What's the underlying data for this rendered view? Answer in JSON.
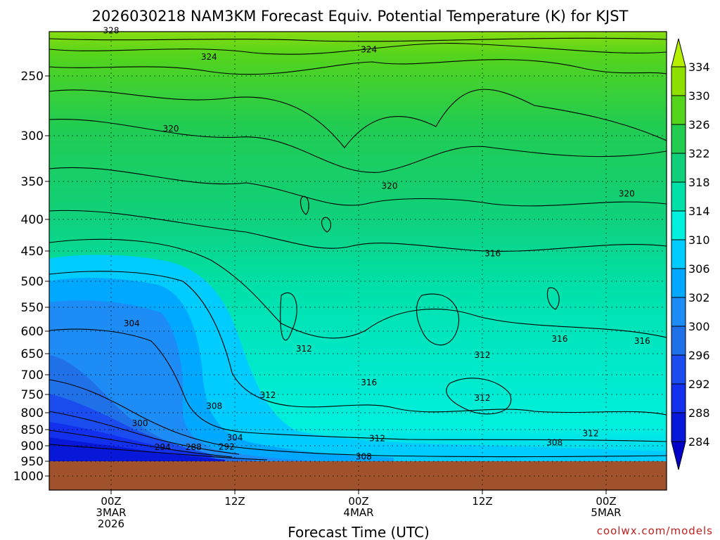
{
  "chart_data": {
    "type": "heatmap",
    "title": "2026030218 NAM3KM Forecast Equiv. Potential Temperature (K) for KJST",
    "xlabel": "Forecast Time (UTC)",
    "ylabel": "",
    "credit": "coolwx.com/models",
    "x_ticks": [
      {
        "hour": 6,
        "lines": [
          "00Z",
          "3MAR",
          "2026"
        ]
      },
      {
        "hour": 18,
        "lines": [
          "12Z"
        ]
      },
      {
        "hour": 30,
        "lines": [
          "00Z",
          "4MAR"
        ]
      },
      {
        "hour": 42,
        "lines": [
          "12Z"
        ]
      },
      {
        "hour": 54,
        "lines": [
          "00Z",
          "5MAR"
        ]
      }
    ],
    "xlim_hours": [
      0,
      60
    ],
    "y_ticks": [
      250,
      300,
      350,
      400,
      450,
      500,
      550,
      600,
      650,
      700,
      750,
      800,
      850,
      900,
      950,
      1000
    ],
    "ylim_hpa": [
      200,
      1050
    ],
    "ground_level_hpa": 950,
    "colorbar": {
      "ticks": [
        334,
        330,
        326,
        322,
        318,
        314,
        310,
        306,
        302,
        300,
        296,
        292,
        288,
        284
      ],
      "colors": [
        "#b5f000",
        "#8ee000",
        "#55d41c",
        "#22cc50",
        "#10d07a",
        "#00e0a8",
        "#00f0dd",
        "#00ccff",
        "#00a8ff",
        "#1e8cf5",
        "#2070e8",
        "#1a4cf0",
        "#1230ee",
        "#0818d8",
        "#0000c8"
      ]
    },
    "contour_labels": [
      {
        "value": "328",
        "hour": 6.0,
        "hpa": 212
      },
      {
        "value": "324",
        "hour": 15.5,
        "hpa": 234
      },
      {
        "value": "324",
        "hour": 31.0,
        "hpa": 228
      },
      {
        "value": "320",
        "hour": 11.8,
        "hpa": 294
      },
      {
        "value": "320",
        "hour": 33.0,
        "hpa": 356
      },
      {
        "value": "320",
        "hour": 56.0,
        "hpa": 366
      },
      {
        "value": "316",
        "hour": 43.0,
        "hpa": 454
      },
      {
        "value": "316",
        "hour": 49.5,
        "hpa": 617
      },
      {
        "value": "316",
        "hour": 57.5,
        "hpa": 622
      },
      {
        "value": "316",
        "hour": 31.0,
        "hpa": 720
      },
      {
        "value": "312",
        "hour": 24.7,
        "hpa": 639
      },
      {
        "value": "312",
        "hour": 42.0,
        "hpa": 653
      },
      {
        "value": "312",
        "hour": 21.2,
        "hpa": 752
      },
      {
        "value": "312",
        "hour": 42.0,
        "hpa": 760
      },
      {
        "value": "312",
        "hour": 31.8,
        "hpa": 877
      },
      {
        "value": "312",
        "hour": 52.5,
        "hpa": 862
      },
      {
        "value": "308",
        "hour": 16.0,
        "hpa": 782
      },
      {
        "value": "308",
        "hour": 49.0,
        "hpa": 890
      },
      {
        "value": "308",
        "hour": 30.5,
        "hpa": 935
      },
      {
        "value": "304",
        "hour": 8.0,
        "hpa": 584
      },
      {
        "value": "304",
        "hour": 18.0,
        "hpa": 875
      },
      {
        "value": "300",
        "hour": 8.8,
        "hpa": 831
      },
      {
        "value": "294",
        "hour": 11.0,
        "hpa": 905
      },
      {
        "value": "288",
        "hour": 14.0,
        "hpa": 905
      },
      {
        "value": "292",
        "hour": 17.2,
        "hpa": 903
      }
    ]
  }
}
